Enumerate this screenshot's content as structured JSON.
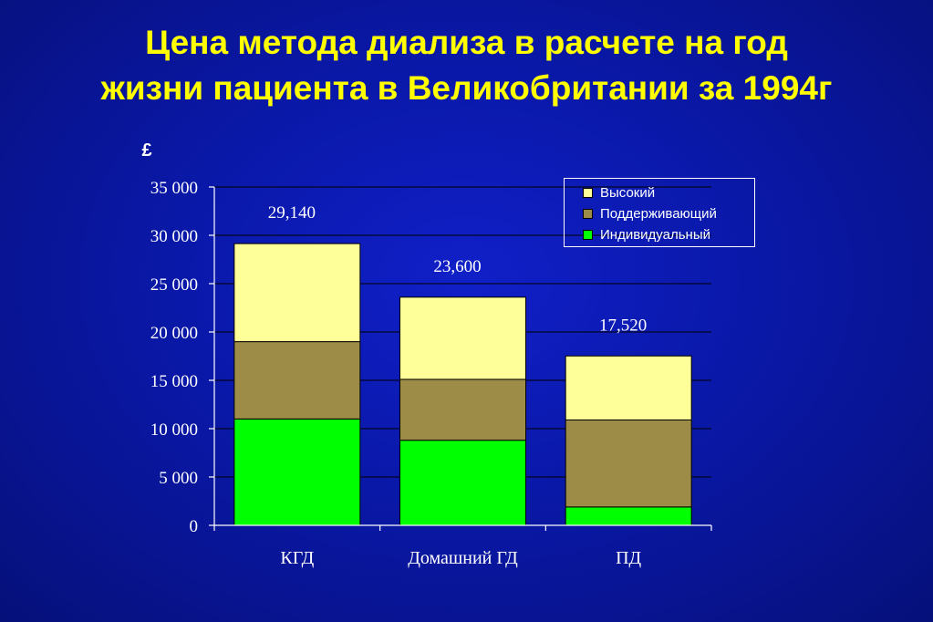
{
  "title_lines": [
    "Цена метода диализа в расчете на год",
    "жизни пациента в Великобритании за 1994г"
  ],
  "chart_data": {
    "type": "bar",
    "stacked": true,
    "ylabel": "£",
    "ylim": [
      0,
      35000
    ],
    "yticks": [
      0,
      5000,
      10000,
      15000,
      20000,
      25000,
      30000,
      35000
    ],
    "ytick_labels": [
      "0",
      "5 000",
      "10 000",
      "15 000",
      "20 000",
      "25 000",
      "30 000",
      "35 000"
    ],
    "grid": true,
    "legend_position": "top-right",
    "categories": [
      "КГД",
      "Домашний ГД",
      "ПД"
    ],
    "series": [
      {
        "name": "Индивидуальный",
        "color": "#00ff00",
        "values": [
          11000,
          8800,
          1900
        ]
      },
      {
        "name": "Поддерживающий",
        "color": "#9c8c48",
        "values": [
          8000,
          6300,
          9000
        ]
      },
      {
        "name": "Высокий",
        "color": "#ffff99",
        "values": [
          10140,
          8500,
          6620
        ]
      }
    ],
    "totals": [
      29140,
      23600,
      17520
    ],
    "total_labels": [
      "29,140",
      "23,600",
      "17,520"
    ]
  }
}
